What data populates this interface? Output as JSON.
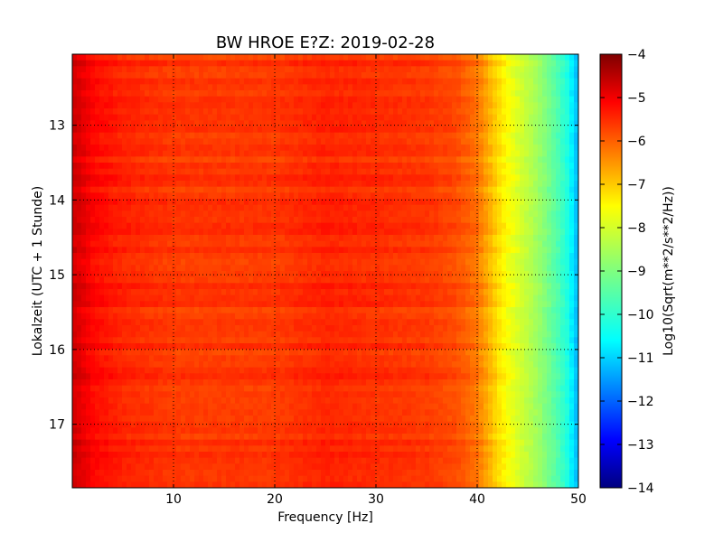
{
  "chart_data": {
    "type": "heatmap",
    "title": "BW HROE E?Z: 2019-02-28",
    "xlabel": "Frequency [Hz]",
    "ylabel": "Lokalzeit (UTC + 1 Stunde)",
    "xlim": [
      0,
      50
    ],
    "ylim": [
      12.05,
      17.85
    ],
    "y_inverted": true,
    "x_ticks": [
      10,
      20,
      30,
      40,
      50
    ],
    "y_ticks": [
      13,
      14,
      15,
      16,
      17
    ],
    "grid": true,
    "colormap": "jet",
    "colorbar": {
      "label": "Log10(Sqrt(m**2/s**2/Hz))",
      "range": [
        -14,
        -4
      ],
      "ticks": [
        -4,
        -5,
        -6,
        -7,
        -8,
        -9,
        -10,
        -11,
        -12,
        -13,
        -14
      ]
    },
    "frequency_profile": {
      "frequency_hz": [
        0,
        1,
        2,
        5,
        10,
        15,
        20,
        25,
        30,
        35,
        38,
        40,
        41,
        42,
        43,
        44,
        45,
        46,
        47,
        48,
        49,
        49.5,
        50
      ],
      "level_log10": [
        -4.8,
        -5.0,
        -5.3,
        -5.6,
        -5.8,
        -5.8,
        -5.8,
        -5.6,
        -5.7,
        -5.8,
        -6.0,
        -6.4,
        -6.9,
        -7.4,
        -7.8,
        -8.1,
        -8.4,
        -8.7,
        -9.1,
        -9.5,
        -10.0,
        -10.6,
        -11.0
      ]
    },
    "colors": {
      "jet": [
        "#00007f",
        "#0000ff",
        "#007fff",
        "#00ffff",
        "#7fff7f",
        "#ffff00",
        "#ff7f00",
        "#ff0000",
        "#7f0000"
      ]
    }
  }
}
